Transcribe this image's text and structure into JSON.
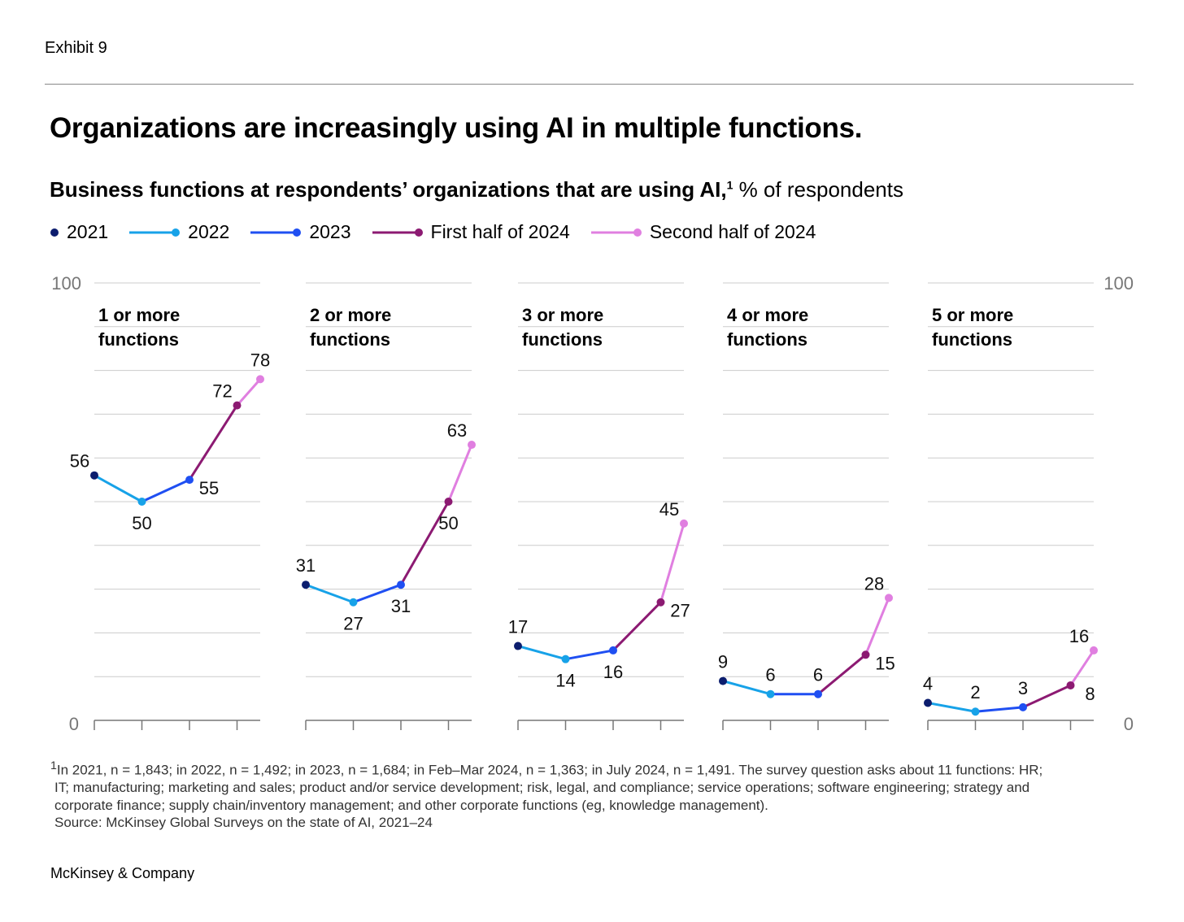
{
  "header": {
    "exhibit": "Exhibit 9",
    "title": "Organizations are increasingly using AI in multiple functions.",
    "subtitle_bold": "Business functions at respondents’ organizations that are using AI,",
    "subtitle_sup": "1",
    "subtitle_unit": " % of respondents"
  },
  "chart_data": {
    "type": "line",
    "title": "Organizations are increasingly using AI in multiple functions.",
    "ylabel": "% of respondents",
    "ylim": [
      0,
      100
    ],
    "yticks": [
      "0",
      "100"
    ],
    "grid": true,
    "legend_placement": "top-left",
    "categories": [
      "2021",
      "2022",
      "2023",
      "First half of 2024",
      "Second half of 2024"
    ],
    "colors": [
      "#0c1d6e",
      "#17a2e8",
      "#1f4ff2",
      "#8c1a72",
      "#e07fe0"
    ],
    "panels": [
      {
        "title_line1": "1 or more",
        "title_line2": "functions",
        "values": [
          56,
          50,
          55,
          72,
          78
        ]
      },
      {
        "title_line1": "2 or more",
        "title_line2": "functions",
        "values": [
          31,
          27,
          31,
          50,
          63
        ]
      },
      {
        "title_line1": "3 or more",
        "title_line2": "functions",
        "values": [
          17,
          14,
          16,
          27,
          45
        ]
      },
      {
        "title_line1": "4 or more",
        "title_line2": "functions",
        "values": [
          9,
          6,
          6,
          15,
          28
        ]
      },
      {
        "title_line1": "5 or more",
        "title_line2": "functions",
        "values": [
          4,
          2,
          3,
          8,
          16
        ]
      }
    ]
  },
  "footnote": {
    "line1": "In 2021, n = 1,843; in 2022, n = 1,492; in 2023, n = 1,684; in Feb–Mar 2024, n = 1,363; in July 2024, n = 1,491. The survey question asks about 11 functions: HR;",
    "line1_sup": "1",
    "line2": "IT; manufacturing; marketing and sales; product and/or service development; risk, legal, and compliance; service operations; software engineering; strategy and",
    "line3": "corporate finance; supply chain/inventory management; and other corporate functions (eg, knowledge management).",
    "source": "Source: McKinsey Global Surveys on the state of AI, 2021–24"
  },
  "brand": "McKinsey & Company"
}
